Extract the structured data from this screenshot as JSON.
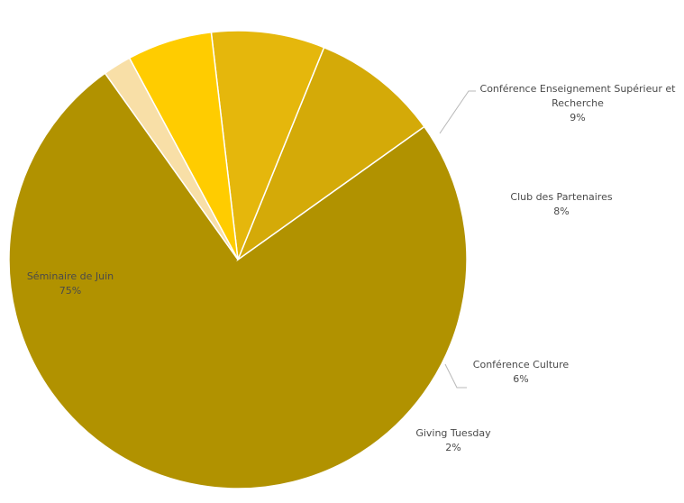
{
  "chart_data": {
    "type": "pie",
    "slices": [
      {
        "name": "Séminaire de Juin",
        "pct_label": "75%",
        "value": 75,
        "color": "#B19200"
      },
      {
        "name": "Conférence Enseignement Supérieur et Recherche",
        "name_lines": [
          "Conférence Enseignement Supérieur et",
          "Recherche"
        ],
        "pct_label": "9%",
        "value": 9,
        "color": "#D4AA08"
      },
      {
        "name": "Club des Partenaires",
        "pct_label": "8%",
        "value": 8,
        "color": "#E5B70C"
      },
      {
        "name": "Conférence Culture",
        "pct_label": "6%",
        "value": 6,
        "color": "#FFCC00"
      },
      {
        "name": "Giving Tuesday",
        "pct_label": "2%",
        "value": 2,
        "color": "#F8DFA7"
      }
    ],
    "legend": "none",
    "labels": "outside-with-leader-lines"
  }
}
